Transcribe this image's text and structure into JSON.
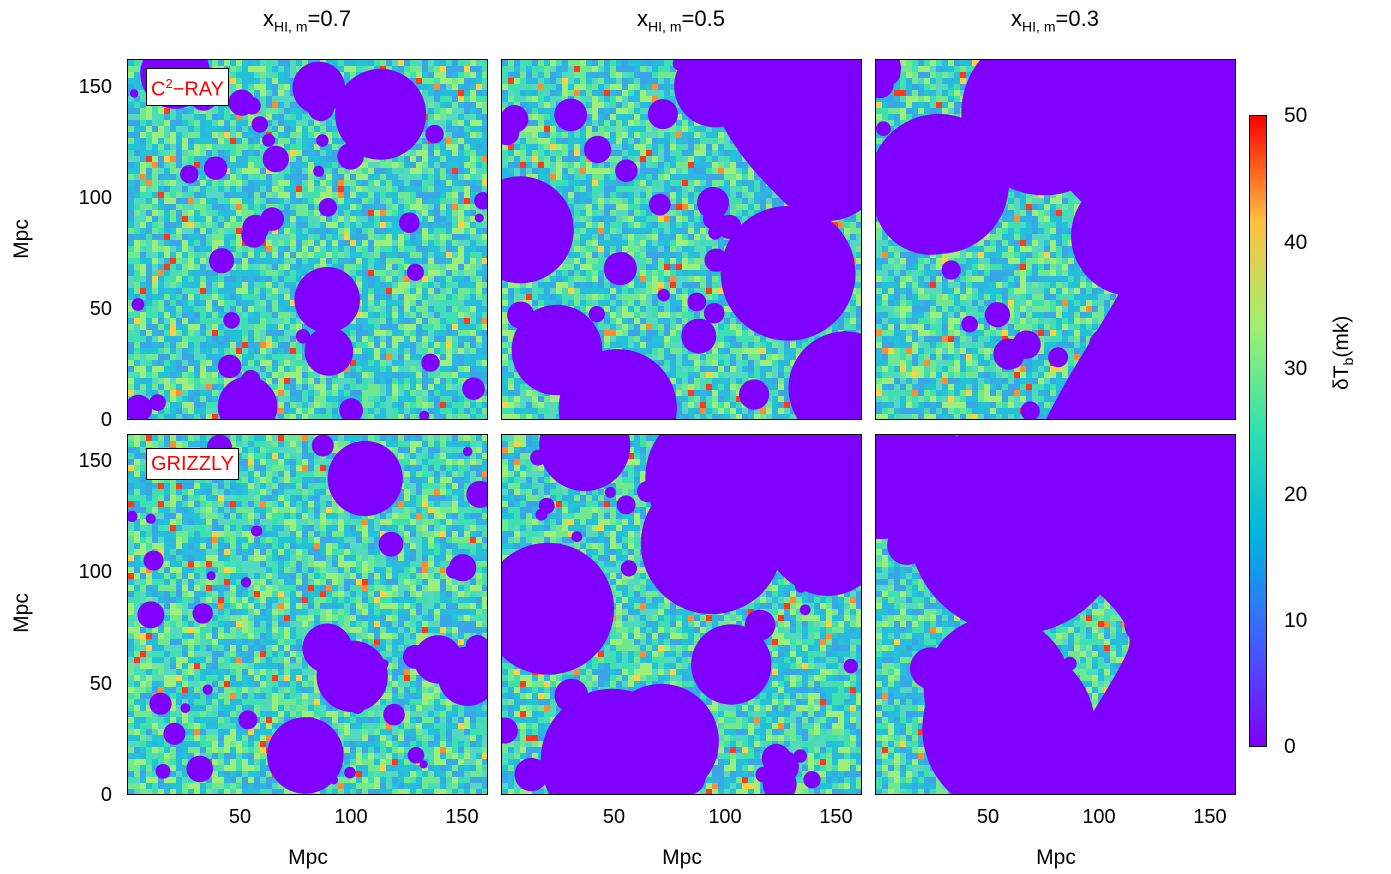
{
  "columns": [
    {
      "title_main": "x",
      "title_sub": "HI, m",
      "title_val": "=0.7"
    },
    {
      "title_main": "x",
      "title_sub": "HI, m",
      "title_val": "=0.5"
    },
    {
      "title_main": "x",
      "title_sub": "HI, m",
      "title_val": "=0.3"
    }
  ],
  "rows": [
    {
      "label_main": "C",
      "label_sup": "2",
      "label_rest": "−RAY"
    },
    {
      "label_main": "GRIZZLY",
      "label_sup": "",
      "label_rest": ""
    }
  ],
  "axes": {
    "ylabel": "Mpc",
    "xlabel": "Mpc",
    "yticks": [
      "0",
      "50",
      "100",
      "150"
    ],
    "xticks": [
      "50",
      "100",
      "150"
    ]
  },
  "colorbar": {
    "label_main": "δT",
    "label_sub": "b",
    "label_rest": "(mk)",
    "ticks": [
      "0",
      "10",
      "20",
      "30",
      "40",
      "50"
    ],
    "stops": [
      "#7f00ff",
      "#4060ff",
      "#00b4e0",
      "#30e0b0",
      "#a0f070",
      "#ffc040",
      "#ff0000"
    ]
  },
  "chart_data": {
    "type": "heatmap",
    "grid": "2 rows x 3 columns of maps",
    "x_range": [
      0,
      163
    ],
    "y_range": [
      0,
      163
    ],
    "value_range": [
      0,
      50
    ],
    "value_units": "mk",
    "colormap": "rainbow",
    "panels": [
      {
        "row": "C2-RAY",
        "column": "xHI,m=0.7"
      },
      {
        "row": "C2-RAY",
        "column": "xHI,m=0.5"
      },
      {
        "row": "C2-RAY",
        "column": "xHI,m=0.3"
      },
      {
        "row": "GRIZZLY",
        "column": "xHI,m=0.7"
      },
      {
        "row": "GRIZZLY",
        "column": "xHI,m=0.5"
      },
      {
        "row": "GRIZZLY",
        "column": "xHI,m=0.3"
      }
    ],
    "ionized_fraction_per_column": [
      0.3,
      0.5,
      0.7
    ]
  }
}
